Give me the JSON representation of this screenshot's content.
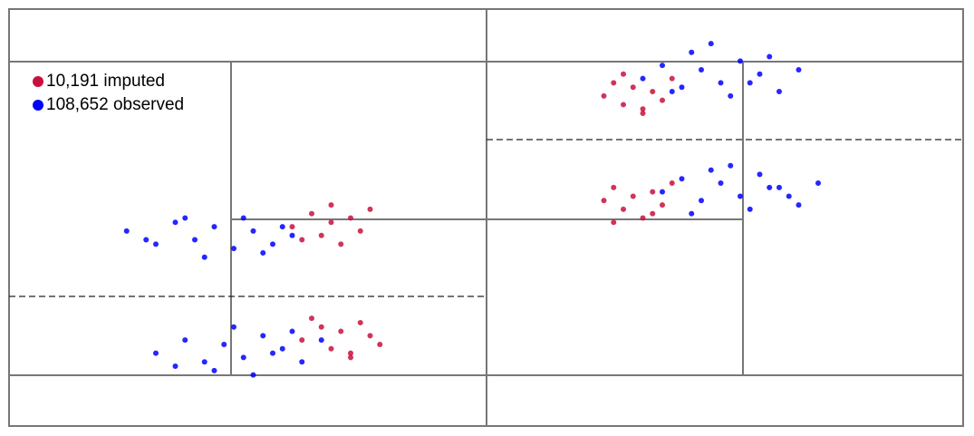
{
  "chart_data": {
    "type": "scatter",
    "xlim": [
      0,
      100
    ],
    "ylim": [
      0,
      100
    ],
    "series": [
      {
        "name": "10,191 imputed",
        "color": "#c8103e",
        "x": [
          30,
          32,
          33,
          34,
          35,
          36,
          37,
          38,
          31,
          34,
          31,
          33,
          34,
          35,
          36,
          37,
          38,
          39,
          32,
          36,
          62,
          63,
          64,
          65,
          66,
          67,
          68,
          69,
          64,
          66,
          62,
          63,
          64,
          65,
          66,
          67,
          68,
          69,
          63,
          67
        ],
        "y": [
          48,
          51,
          46,
          49,
          44,
          50,
          47,
          52,
          45,
          53,
          22,
          25,
          20,
          24,
          19,
          26,
          23,
          21,
          27,
          18,
          78,
          81,
          76,
          80,
          74,
          79,
          77,
          82,
          83,
          75,
          54,
          57,
          52,
          55,
          50,
          56,
          53,
          58,
          49,
          51
        ]
      },
      {
        "name": "108,652 observed",
        "color": "#0000ff",
        "x": [
          13,
          16,
          18,
          20,
          22,
          24,
          26,
          28,
          30,
          19,
          25,
          27,
          15,
          21,
          29,
          16,
          19,
          21,
          23,
          25,
          27,
          29,
          31,
          33,
          22,
          26,
          30,
          18,
          24,
          28,
          66,
          68,
          70,
          72,
          74,
          76,
          78,
          80,
          82,
          71,
          75,
          79,
          69,
          73,
          77,
          68,
          70,
          72,
          74,
          76,
          78,
          80,
          82,
          84,
          73,
          77,
          81,
          71,
          75,
          79
        ],
        "y": [
          47,
          44,
          49,
          45,
          48,
          43,
          47,
          44,
          46,
          50,
          50,
          42,
          45,
          41,
          48,
          19,
          22,
          17,
          21,
          18,
          23,
          20,
          17,
          22,
          15,
          14,
          24,
          16,
          25,
          19,
          82,
          85,
          80,
          84,
          81,
          86,
          83,
          79,
          84,
          88,
          78,
          87,
          79,
          90,
          81,
          56,
          59,
          54,
          58,
          55,
          60,
          57,
          53,
          58,
          61,
          52,
          55,
          51,
          62,
          57
        ]
      }
    ]
  }
}
